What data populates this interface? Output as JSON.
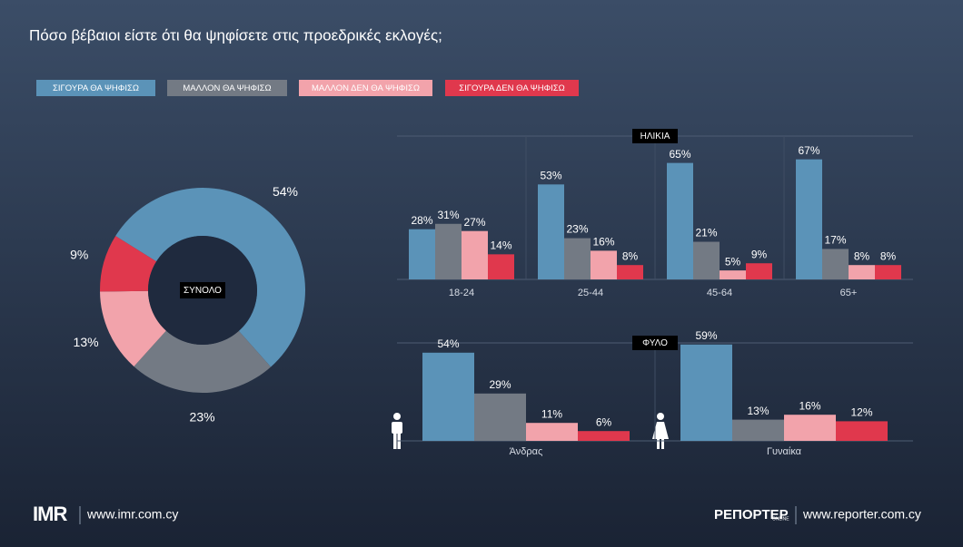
{
  "title": "Πόσο βέβαιοι είστε ότι θα ψηφίσετε στις προεδρικές εκλογές;",
  "chart_data": [
    {
      "type": "pie",
      "center_label": "ΣΥΝΟΛΟ",
      "categories": [
        "ΣΙΓΟΥΡΑ ΘΑ ΨΗΦΙΣΩ",
        "ΜΑΛΛΟΝ ΘΑ ΨΗΦΙΣΩ",
        "ΜΑΛΛΟΝ ΔΕΝ ΘΑ ΨΗΦΙΣΩ",
        "ΣΙΓΟΥΡΑ ΔΕΝ ΘΑ ΨΗΦΙΣΩ"
      ],
      "values": [
        54,
        23,
        13,
        9
      ],
      "value_labels": [
        "54%",
        "23%",
        "13%",
        "9%"
      ],
      "colors": [
        "#5b93b8",
        "#737a84",
        "#f2a3ab",
        "#e0384d"
      ]
    },
    {
      "type": "bar",
      "title": "ΗΛΙΚΙΑ",
      "categories": [
        "18-24",
        "25-44",
        "45-64",
        "65+"
      ],
      "ylim": [
        0,
        80
      ],
      "series": [
        {
          "name": "ΣΙΓΟΥΡΑ ΘΑ ΨΗΦΙΣΩ",
          "color": "#5b93b8",
          "values": [
            28,
            53,
            65,
            67
          ],
          "value_labels": [
            "28%",
            "53%",
            "65%",
            "67%"
          ]
        },
        {
          "name": "ΜΑΛΛΟΝ ΘΑ ΨΗΦΙΣΩ",
          "color": "#737a84",
          "values": [
            31,
            23,
            21,
            17
          ],
          "value_labels": [
            "31%",
            "23%",
            "21%",
            "17%"
          ]
        },
        {
          "name": "ΜΑΛΛΟΝ ΔΕΝ ΘΑ ΨΗΦΙΣΩ",
          "color": "#f2a3ab",
          "values": [
            27,
            16,
            5,
            8
          ],
          "value_labels": [
            "27%",
            "16%",
            "5%",
            "8%"
          ]
        },
        {
          "name": "ΣΙΓΟΥΡΑ ΔΕΝ ΘΑ ΨΗΦΙΣΩ",
          "color": "#e0384d",
          "values": [
            14,
            8,
            9,
            8
          ],
          "value_labels": [
            "14%",
            "8%",
            "9%",
            "8%"
          ]
        }
      ]
    },
    {
      "type": "bar",
      "title": "ΦΥΛΟ",
      "categories": [
        "Άνδρας",
        "Γυναίκα"
      ],
      "ylim": [
        0,
        60
      ],
      "series": [
        {
          "name": "ΣΙΓΟΥΡΑ ΘΑ ΨΗΦΙΣΩ",
          "color": "#5b93b8",
          "values": [
            54,
            59
          ],
          "value_labels": [
            "54%",
            "59%"
          ]
        },
        {
          "name": "ΜΑΛΛΟΝ ΘΑ ΨΗΦΙΣΩ",
          "color": "#737a84",
          "values": [
            29,
            13
          ],
          "value_labels": [
            "29%",
            "13%"
          ]
        },
        {
          "name": "ΜΑΛΛΟΝ ΔΕΝ ΘΑ ΨΗΦΙΣΩ",
          "color": "#f2a3ab",
          "values": [
            11,
            16
          ],
          "value_labels": [
            "11%",
            "16%"
          ]
        },
        {
          "name": "ΣΙΓΟΥΡΑ ΔΕΝ ΘΑ ΨΗΦΙΣΩ",
          "color": "#e0384d",
          "values": [
            6,
            12
          ],
          "value_labels": [
            "6%",
            "12%"
          ]
        }
      ]
    }
  ],
  "footer": {
    "left_logo": "IMR",
    "left_url": "www.imr.com.cy",
    "right_logo": "ΡΕΠΟΡΤΕΡ",
    "right_logo_sub": "ONLINE",
    "right_url": "www.reporter.com.cy"
  }
}
